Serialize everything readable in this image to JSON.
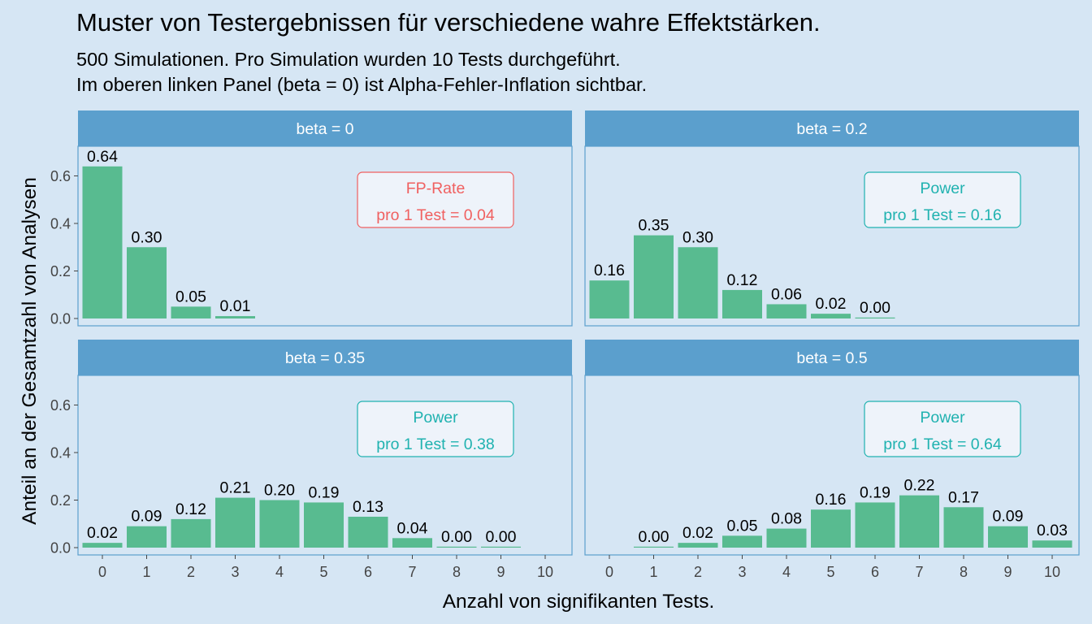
{
  "title": "Muster von Testergebnissen für verschiedene wahre Effektstärken.",
  "subtitle_lines": [
    "500 Simulationen. Pro Simulation wurden 10 Tests durchgeführt.",
    "Im oberen linken Panel (beta = 0) ist Alpha-Fehler-Inflation sichtbar."
  ],
  "colors": {
    "background": "#d6e6f4",
    "panel_background": "#d6e6f4",
    "panel_border": "#5b9fcd",
    "strip": "#5b9fcd",
    "bar": "#58bb90",
    "fp_label": "#f06060",
    "power_label": "#20b2b0"
  },
  "chart_data": {
    "type": "bar",
    "xlabel": "Anzahl von signifikanten Tests.",
    "ylabel": "Anteil an der Gesamtzahl von Analysen",
    "categories": [
      "0",
      "1",
      "2",
      "3",
      "4",
      "5",
      "6",
      "7",
      "8",
      "9",
      "10"
    ],
    "y_ticks": [
      "0.0",
      "0.2",
      "0.4",
      "0.6"
    ],
    "ylim": [
      0,
      0.68
    ],
    "facet_layout": "2x2",
    "grid": false,
    "panels": [
      {
        "strip": "beta = 0",
        "values": [
          0.64,
          0.3,
          0.05,
          0.01,
          null,
          null,
          null,
          null,
          null,
          null,
          null
        ],
        "labels": [
          "0.64",
          "0.30",
          "0.05",
          "0.01",
          "",
          "",
          "",
          "",
          "",
          "",
          ""
        ],
        "annotation": {
          "line1": "FP-Rate",
          "line2": "pro 1 Test = 0.04",
          "kind": "fp"
        }
      },
      {
        "strip": "beta = 0.2",
        "values": [
          0.16,
          0.35,
          0.3,
          0.12,
          0.06,
          0.02,
          0.0,
          null,
          null,
          null,
          null
        ],
        "labels": [
          "0.16",
          "0.35",
          "0.30",
          "0.12",
          "0.06",
          "0.02",
          "0.00",
          "",
          "",
          "",
          ""
        ],
        "annotation": {
          "line1": "Power",
          "line2": "pro 1 Test = 0.16",
          "kind": "power"
        }
      },
      {
        "strip": "beta = 0.35",
        "values": [
          0.02,
          0.09,
          0.12,
          0.21,
          0.2,
          0.19,
          0.13,
          0.04,
          0.0,
          0.0,
          null
        ],
        "labels": [
          "0.02",
          "0.09",
          "0.12",
          "0.21",
          "0.20",
          "0.19",
          "0.13",
          "0.04",
          "0.00",
          "0.00",
          ""
        ],
        "annotation": {
          "line1": "Power",
          "line2": "pro 1 Test = 0.38",
          "kind": "power"
        }
      },
      {
        "strip": "beta = 0.5",
        "values": [
          null,
          0.0,
          0.02,
          0.05,
          0.08,
          0.16,
          0.19,
          0.22,
          0.17,
          0.09,
          0.03
        ],
        "labels": [
          "",
          "0.00",
          "0.02",
          "0.05",
          "0.08",
          "0.16",
          "0.19",
          "0.22",
          "0.17",
          "0.09",
          "0.03"
        ],
        "annotation": {
          "line1": "Power",
          "line2": "pro 1 Test = 0.64",
          "kind": "power"
        }
      }
    ]
  }
}
